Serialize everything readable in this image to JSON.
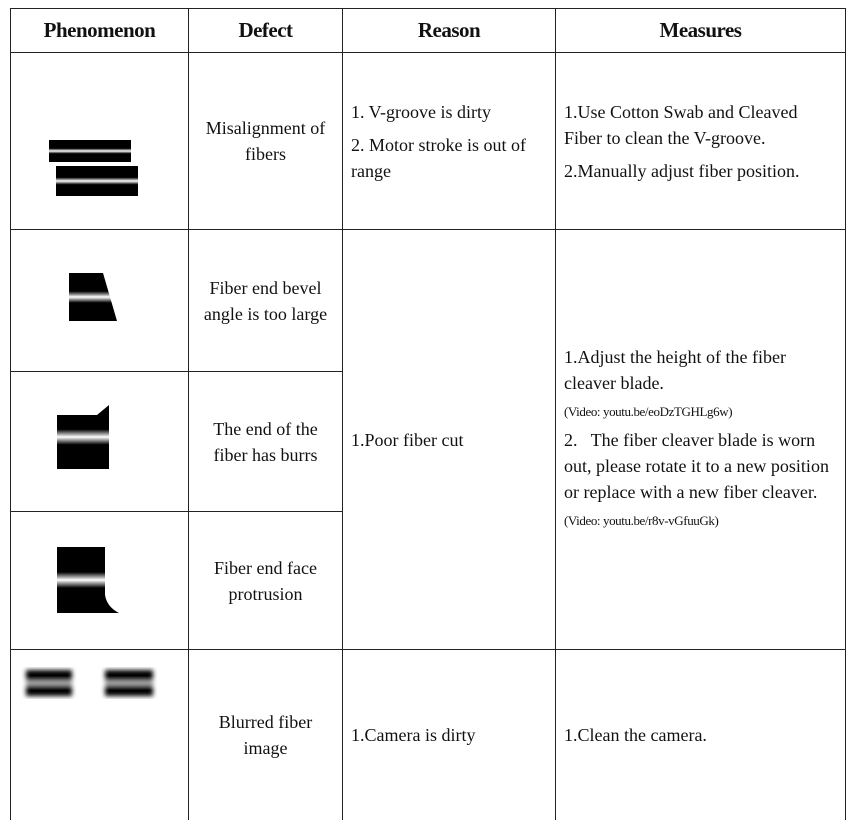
{
  "table": {
    "header": [
      "Phenomenon",
      "Defect",
      "Reason",
      "Measures"
    ],
    "rows": [
      {
        "defect": "Misalignment of fibers",
        "reason": [
          "1. V-groove is dirty",
          "2. Motor stroke is out of range"
        ],
        "measures": [
          "1.Use Cotton Swab and Cleaved Fiber to clean the V-groove.",
          "2.Manually adjust fiber position."
        ]
      },
      {
        "defect": "Fiber end bevel angle is too large"
      },
      {
        "defect": "The end of the fiber has burrs"
      },
      {
        "defect": "Fiber end face protrusion"
      },
      {
        "defect": "Blurred fiber image",
        "reason": [
          "1.Camera is dirty"
        ],
        "measures": [
          "1.Clean the camera."
        ]
      }
    ],
    "group": {
      "reason": "1.Poor fiber cut",
      "measures": [
        "1.Adjust the height of the fiber cleaver blade.",
        "(Video: youtu.be/eoDzTGHLg6w)",
        "2.   The fiber cleaver blade is worn out, please rotate it to a new position or replace with a new fiber cleaver.",
        "(Video: youtu.be/r8v-vGfuuGk)"
      ]
    }
  }
}
